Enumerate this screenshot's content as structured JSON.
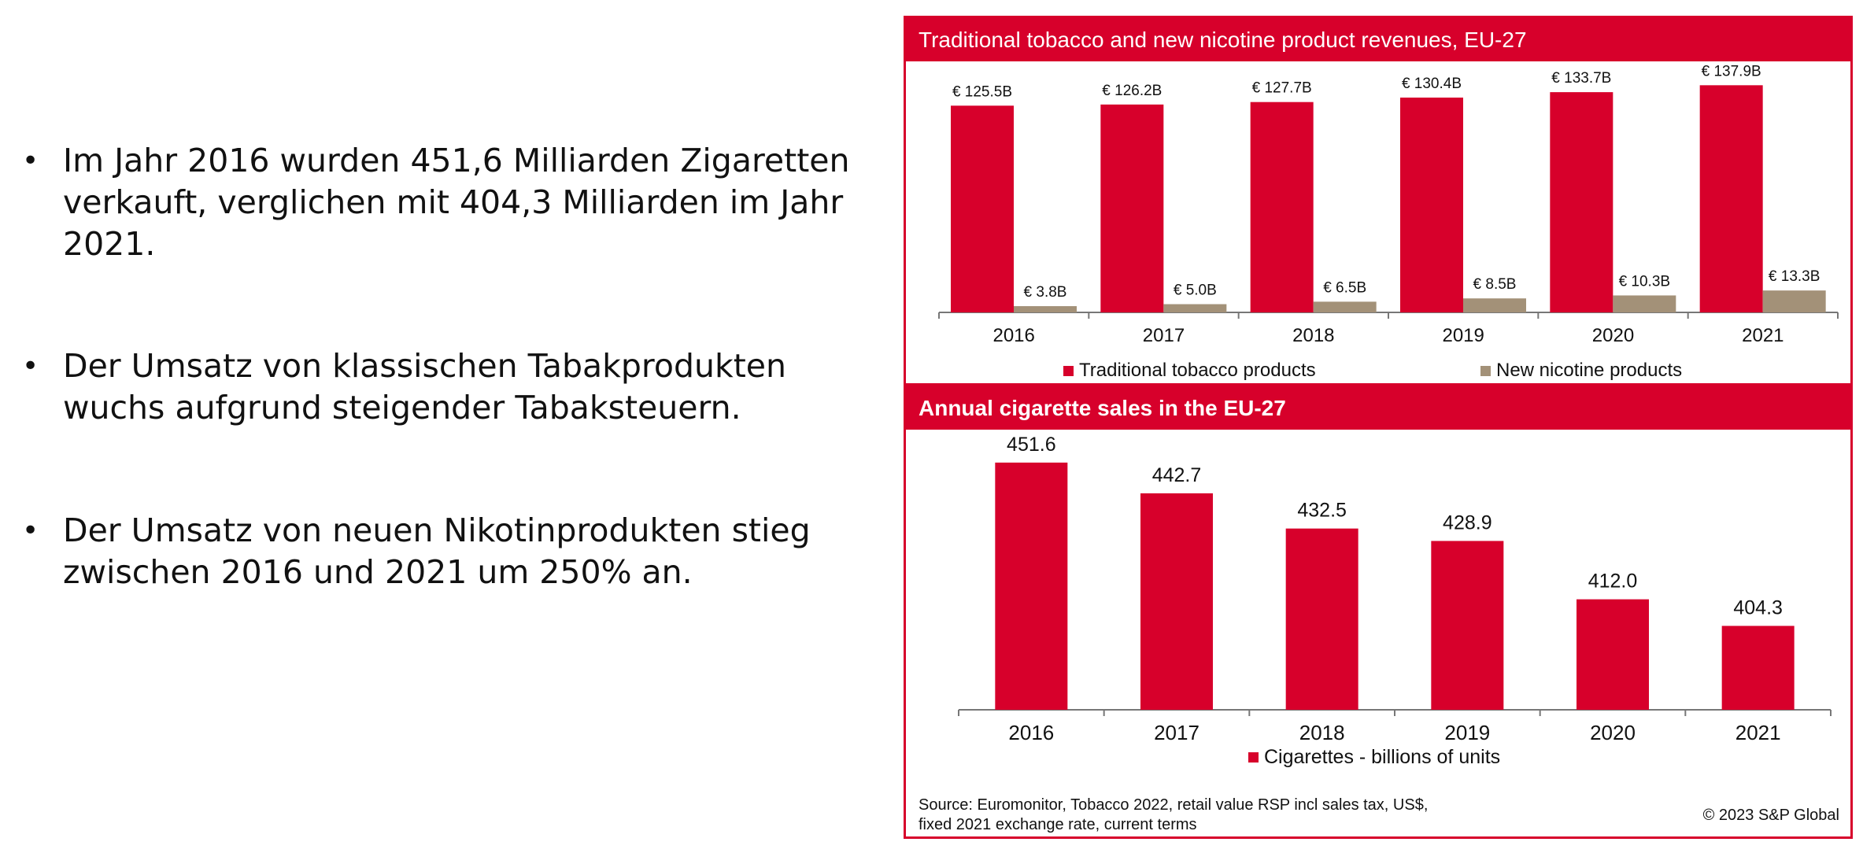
{
  "bullets": [
    "Im Jahr 2016 wurden 451,6 Milliarden Zigaretten verkauft, verglichen mit 404,3 Milliarden im Jahr 2021.",
    "Der Umsatz von klassischen Tabakprodukten wuchs aufgrund steigender Tabaksteuern.",
    "Der Umsatz von neuen Nikotinprodukten stieg zwischen 2016 und 2021 um 250% an."
  ],
  "bullet_symbol": "•",
  "colors": {
    "accent": "#d7002b",
    "secondary": "#a39178"
  },
  "source_note": "Source: Euromonitor, Tobacco 2022, retail value RSP incl sales tax, US$, fixed 2021 exchange rate, current terms",
  "copyright": "© 2023 S&P Global",
  "chart_data": [
    {
      "type": "bar",
      "title": "Traditional tobacco and new nicotine product revenues, EU-27",
      "categories": [
        "2016",
        "2017",
        "2018",
        "2019",
        "2020",
        "2021"
      ],
      "series": [
        {
          "name": "Traditional tobacco products",
          "values": [
            125.5,
            126.2,
            127.7,
            130.4,
            133.7,
            137.9
          ],
          "labels": [
            "€ 125.5B",
            "€ 126.2B",
            "€ 127.7B",
            "€ 130.4B",
            "€ 133.7B",
            "€ 137.9B"
          ],
          "color": "#d7002b"
        },
        {
          "name": "New nicotine products",
          "values": [
            3.8,
            5.0,
            6.5,
            8.5,
            10.3,
            13.3
          ],
          "labels": [
            "€ 3.8B",
            "€ 5.0B",
            "€ 6.5B",
            "€ 8.5B",
            "€ 10.3B",
            "€ 13.3B"
          ],
          "color": "#a39178"
        }
      ],
      "ylim": [
        0,
        150
      ],
      "legend": "bottom",
      "grid": false
    },
    {
      "type": "bar",
      "title": "Annual cigarette sales in the EU-27",
      "categories": [
        "2016",
        "2017",
        "2018",
        "2019",
        "2020",
        "2021"
      ],
      "series": [
        {
          "name": "Cigarettes - billions of units",
          "values": [
            451.6,
            442.7,
            432.5,
            428.9,
            412.0,
            404.3
          ],
          "labels": [
            "451.6",
            "442.7",
            "432.5",
            "428.9",
            "412.0",
            "404.3"
          ],
          "color": "#d7002b"
        }
      ],
      "ylim": [
        380,
        460
      ],
      "legend": "bottom",
      "grid": false
    }
  ]
}
